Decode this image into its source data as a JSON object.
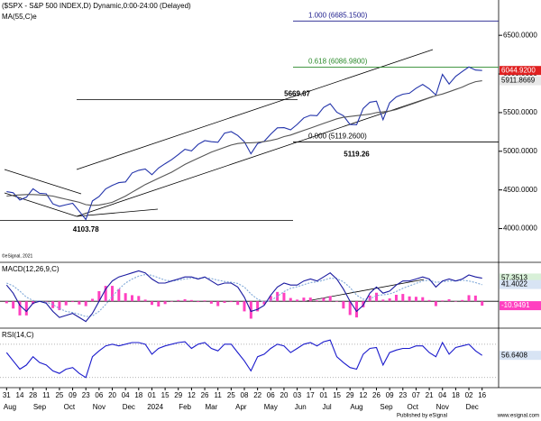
{
  "chart_data": [
    {
      "type": "line",
      "title": "($SPX - S&P 500 INDEX,D) Dynamic,0:00-24:00 (Delayed)",
      "xlim": [
        -1,
        74.5
      ],
      "xticks": [
        {
          "value": 0,
          "label": "31"
        },
        {
          "value": 2,
          "label": "14"
        },
        {
          "value": 4,
          "label": "28"
        },
        {
          "value": 6,
          "label": "11"
        },
        {
          "value": 8,
          "label": "25"
        },
        {
          "value": 10,
          "label": "09"
        },
        {
          "value": 12,
          "label": "23"
        },
        {
          "value": 14,
          "label": "06"
        },
        {
          "value": 16,
          "label": "20"
        },
        {
          "value": 18,
          "label": "04"
        },
        {
          "value": 20,
          "label": "18"
        },
        {
          "value": 22,
          "label": "01"
        },
        {
          "value": 24,
          "label": "15"
        },
        {
          "value": 26,
          "label": "29"
        },
        {
          "value": 28,
          "label": "12"
        },
        {
          "value": 30,
          "label": "26"
        },
        {
          "value": 32,
          "label": "11"
        },
        {
          "value": 34,
          "label": "25"
        },
        {
          "value": 36,
          "label": "08"
        },
        {
          "value": 38,
          "label": "22"
        },
        {
          "value": 40,
          "label": "06"
        },
        {
          "value": 42,
          "label": "20"
        },
        {
          "value": 44,
          "label": "03"
        },
        {
          "value": 46,
          "label": "17"
        },
        {
          "value": 48,
          "label": "01"
        },
        {
          "value": 50,
          "label": "15"
        },
        {
          "value": 52,
          "label": "29"
        },
        {
          "value": 54,
          "label": "12"
        },
        {
          "value": 56,
          "label": "26"
        },
        {
          "value": 58,
          "label": "09"
        },
        {
          "value": 60,
          "label": "23"
        },
        {
          "value": 62,
          "label": "07"
        },
        {
          "value": 64,
          "label": "21"
        },
        {
          "value": 66,
          "label": "04"
        },
        {
          "value": 68,
          "label": "18"
        },
        {
          "value": 70,
          "label": "02"
        },
        {
          "value": 72,
          "label": "16"
        }
      ],
      "month_labels": [
        {
          "value": 0.5,
          "label": "Aug"
        },
        {
          "value": 5,
          "label": "Sep"
        },
        {
          "value": 9.5,
          "label": "Oct"
        },
        {
          "value": 14,
          "label": "Nov"
        },
        {
          "value": 18.5,
          "label": "Dec"
        },
        {
          "value": 22.5,
          "label": "2024"
        },
        {
          "value": 27,
          "label": "Feb"
        },
        {
          "value": 31,
          "label": "Mar"
        },
        {
          "value": 35.5,
          "label": "Apr"
        },
        {
          "value": 40,
          "label": "May"
        },
        {
          "value": 44.5,
          "label": "Jun"
        },
        {
          "value": 48.5,
          "label": "Jul"
        },
        {
          "value": 53,
          "label": "Aug"
        },
        {
          "value": 57.5,
          "label": "Sep"
        },
        {
          "value": 61.5,
          "label": "Oct"
        },
        {
          "value": 66,
          "label": "Nov"
        },
        {
          "value": 70.5,
          "label": "Dec"
        }
      ],
      "ylim": [
        3575,
        6910
      ],
      "yticks": [
        {
          "value": 4000,
          "label": "4000.0000"
        },
        {
          "value": 4500,
          "label": "4500.0000"
        },
        {
          "value": 5000,
          "label": "5000.0000"
        },
        {
          "value": 5500,
          "label": "5500.0000"
        },
        {
          "value": 6000,
          "label": "6000.0000"
        },
        {
          "value": 6500,
          "label": "6500.0000"
        }
      ],
      "series": [
        {
          "color": "#2233aa",
          "values": [
            4478,
            4464,
            4370,
            4405,
            4515,
            4457,
            4450,
            4320,
            4288,
            4308,
            4327,
            4224,
            4117,
            4358,
            4415,
            4514,
            4559,
            4594,
            4604,
            4719,
            4754,
            4770,
            4697,
            4783,
            4839,
            4891,
            4958,
            5026,
            5005,
            5088,
            5137,
            5123,
            5117,
            5234,
            5254,
            5204,
            5123,
            4967,
            5100,
            5128,
            5223,
            5303,
            5305,
            5278,
            5347,
            5431,
            5465,
            5460,
            5567,
            5615,
            5505,
            5459,
            5346,
            5344,
            5554,
            5634,
            5648,
            5408,
            5626,
            5703,
            5738,
            5751,
            5815,
            5864,
            5808,
            5728,
            5995,
            5870,
            5969,
            6032,
            6090,
            6051,
            6045
          ]
        },
        {
          "name": "MA(55,C)e",
          "color": "#555555",
          "values": [
            4420,
            4430,
            4435,
            4440,
            4440,
            4435,
            4430,
            4420,
            4400,
            4380,
            4360,
            4340,
            4310,
            4300,
            4305,
            4320,
            4340,
            4380,
            4420,
            4470,
            4520,
            4570,
            4610,
            4650,
            4690,
            4730,
            4780,
            4830,
            4870,
            4910,
            4950,
            4990,
            5020,
            5050,
            5080,
            5100,
            5110,
            5110,
            5115,
            5125,
            5140,
            5160,
            5190,
            5210,
            5240,
            5270,
            5300,
            5330,
            5360,
            5390,
            5420,
            5440,
            5450,
            5460,
            5470,
            5480,
            5500,
            5510,
            5520,
            5540,
            5570,
            5600,
            5630,
            5660,
            5690,
            5720,
            5740,
            5770,
            5800,
            5830,
            5870,
            5900,
            5912
          ]
        }
      ],
      "levels": [
        {
          "label": "1.000 (6685.1500)",
          "value": 6685.15,
          "color": "#1c1c8c"
        },
        {
          "label": "0.618 (6086.9800)",
          "value": 6086.98,
          "color": "#2a8a2a"
        },
        {
          "label": "0.000 (5119.2600)",
          "value": 5119.26,
          "color": "#000000"
        }
      ],
      "annotations": [
        {
          "text": "5669.67",
          "value": 5669.67
        },
        {
          "text": "5119.26",
          "value": 5119.26
        },
        {
          "text": "4103.78",
          "value": 4103.78
        }
      ],
      "price_tags": [
        {
          "value": 6044.92,
          "label": "6044.9200",
          "color": "#e02020"
        },
        {
          "value": 5911.8669,
          "label": "5911.8669"
        }
      ],
      "copyright": "©eSignal, 2021"
    },
    {
      "type": "line",
      "title": "MACD(12,26,9,C)",
      "ylim": [
        -62,
        85
      ],
      "ref_lines": [
        0
      ],
      "series": [
        {
          "kind": "bar",
          "color": "#ff40c0",
          "values": [
            -5,
            -18,
            -35,
            -35,
            -7,
            0,
            -3,
            -17,
            -22,
            -10,
            -2,
            -8,
            -12,
            6,
            25,
            38,
            38,
            30,
            20,
            15,
            13,
            4,
            -9,
            -13,
            -7,
            0,
            3,
            5,
            3,
            -2,
            2,
            -6,
            -12,
            -4,
            -2,
            -9,
            -25,
            -43,
            -25,
            -8,
            13,
            23,
            21,
            8,
            4,
            9,
            9,
            2,
            8,
            13,
            -1,
            -18,
            -34,
            -40,
            -15,
            14,
            21,
            4,
            7,
            16,
            18,
            12,
            11,
            10,
            3,
            -12,
            2,
            5,
            0,
            3,
            15,
            14,
            -11
          ]
        },
        {
          "color": "#7fa8d8",
          "dash": true,
          "values": [
            45,
            38,
            25,
            10,
            2,
            0,
            -2,
            -8,
            -18,
            -25,
            -28,
            -32,
            -38,
            -36,
            -25,
            -8,
            12,
            30,
            45,
            55,
            62,
            66,
            64,
            58,
            52,
            50,
            52,
            55,
            57,
            57,
            58,
            56,
            52,
            49,
            47,
            44,
            35,
            18,
            5,
            -2,
            2,
            12,
            24,
            32,
            36,
            41,
            46,
            48,
            52,
            57,
            56,
            48,
            34,
            15,
            5,
            6,
            14,
            16,
            18,
            24,
            32,
            38,
            44,
            50,
            52,
            47,
            48,
            50,
            50,
            52,
            50,
            46,
            41
          ]
        },
        {
          "color": "#1a1aa0",
          "values": [
            40,
            20,
            -10,
            -25,
            -5,
            0,
            -5,
            -25,
            -40,
            -35,
            -30,
            -40,
            -50,
            -30,
            0,
            30,
            50,
            60,
            65,
            70,
            75,
            70,
            55,
            45,
            45,
            50,
            55,
            60,
            60,
            55,
            60,
            50,
            40,
            45,
            45,
            35,
            10,
            -25,
            -20,
            -10,
            15,
            35,
            45,
            40,
            40,
            50,
            55,
            50,
            60,
            70,
            55,
            30,
            0,
            -25,
            -10,
            20,
            35,
            20,
            25,
            40,
            50,
            50,
            55,
            60,
            55,
            35,
            50,
            55,
            50,
            55,
            65,
            60,
            57
          ]
        }
      ],
      "price_tags": [
        {
          "value": 57.3513,
          "label": "57.3513",
          "color": "#d8f0d8"
        },
        {
          "value": 41.4022,
          "label": "41.4022",
          "color": "#d8e4f4"
        },
        {
          "value": -10.9491,
          "label": "-10.9491",
          "color": "#ff40c0"
        }
      ]
    },
    {
      "type": "line",
      "title": "RSI(14,C)",
      "ylim": [
        20,
        85
      ],
      "ref_lines": [
        70,
        30
      ],
      "series": [
        {
          "color": "#1a1acc",
          "values": [
            60,
            50,
            40,
            45,
            55,
            48,
            45,
            38,
            35,
            40,
            42,
            35,
            30,
            55,
            62,
            68,
            70,
            68,
            70,
            72,
            72,
            70,
            58,
            65,
            68,
            70,
            72,
            73,
            65,
            70,
            72,
            65,
            62,
            70,
            70,
            60,
            50,
            38,
            55,
            58,
            65,
            70,
            68,
            60,
            65,
            70,
            72,
            68,
            73,
            75,
            55,
            48,
            42,
            40,
            58,
            65,
            66,
            45,
            60,
            63,
            65,
            65,
            68,
            68,
            60,
            55,
            72,
            58,
            66,
            68,
            70,
            62,
            56.6
          ]
        }
      ],
      "price_tags": [
        {
          "value": 56.6408,
          "label": "56.6408",
          "color": "#d8e4f4"
        }
      ]
    }
  ],
  "footer": {
    "left": "Published by eSignal",
    "right": "www.esignal.com"
  }
}
